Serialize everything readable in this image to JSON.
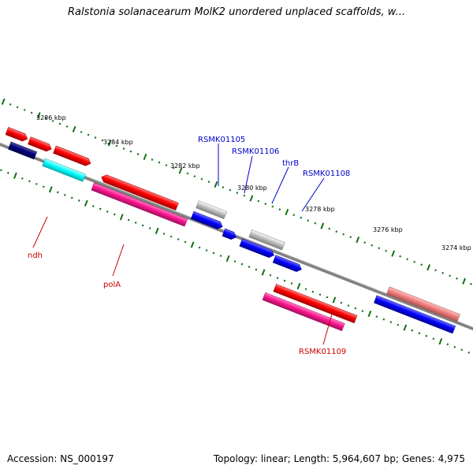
{
  "title": "Ralstonia solanacearum MolK2 unordered unplaced scaffolds, w...",
  "colors": {
    "backbone": "#808080",
    "tick": "#107010",
    "red_gene": "#ff0000",
    "pink_gene": "#ff1493",
    "blue_gene": "#0000ff",
    "navy_gene": "#000080",
    "cyan_gene": "#00ffff",
    "gray_gene": "#b8b8b8",
    "salmon_gene": "#f08080",
    "label_red": "#cc0000",
    "label_blue": "#0000cc"
  },
  "scale": {
    "unit": "kbp",
    "tick_labels": [
      "3286 kbp",
      "3284 kbp",
      "3282 kbp",
      "3280 kbp",
      "3278 kbp",
      "3276 kbp",
      "3274 kbp"
    ]
  },
  "gene_labels": [
    {
      "text": "ndh",
      "color": "label_red"
    },
    {
      "text": "polA",
      "color": "label_red"
    },
    {
      "text": "RSMK01105",
      "color": "label_blue"
    },
    {
      "text": "RSMK01106",
      "color": "label_blue"
    },
    {
      "text": "thrB",
      "color": "label_blue"
    },
    {
      "text": "RSMK01108",
      "color": "label_blue"
    },
    {
      "text": "RSMK01109",
      "color": "label_red"
    }
  ],
  "footer": {
    "accession": "Accession: NS_000197",
    "summary": "Topology: linear; Length: 5,964,607 bp; Genes: 4,975"
  }
}
